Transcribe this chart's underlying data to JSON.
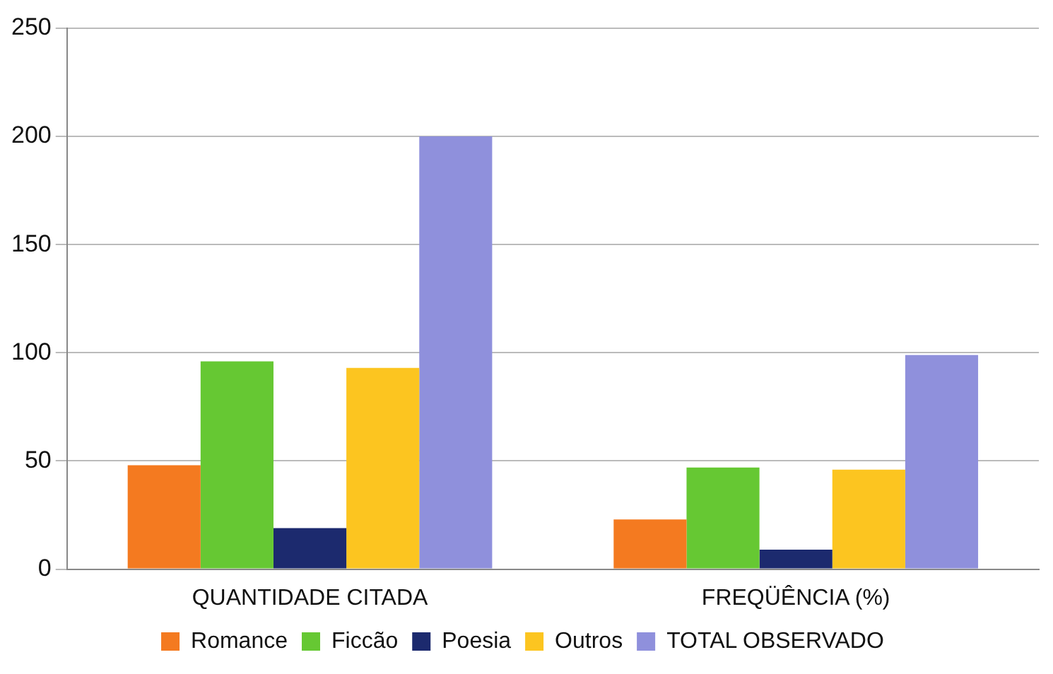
{
  "chart_data": {
    "type": "bar",
    "categories": [
      "QUANTIDADE CITADA",
      "FREQÜÊNCIA (%)"
    ],
    "series": [
      {
        "name": "Romance",
        "color": "#f47a20",
        "values": [
          48,
          23
        ]
      },
      {
        "name": "Ficcão",
        "color": "#66c833",
        "values": [
          96,
          47
        ]
      },
      {
        "name": "Poesia",
        "color": "#1c2a6e",
        "values": [
          19,
          9
        ]
      },
      {
        "name": "Outros",
        "color": "#fcc520",
        "values": [
          93,
          46
        ]
      },
      {
        "name": "TOTAL OBSERVADO",
        "color": "#8f90dc",
        "values": [
          200,
          99
        ]
      }
    ],
    "ylim": [
      0,
      250
    ],
    "yticks": [
      0,
      50,
      100,
      150,
      200,
      250
    ],
    "grid": "y",
    "legend": "bottom"
  }
}
